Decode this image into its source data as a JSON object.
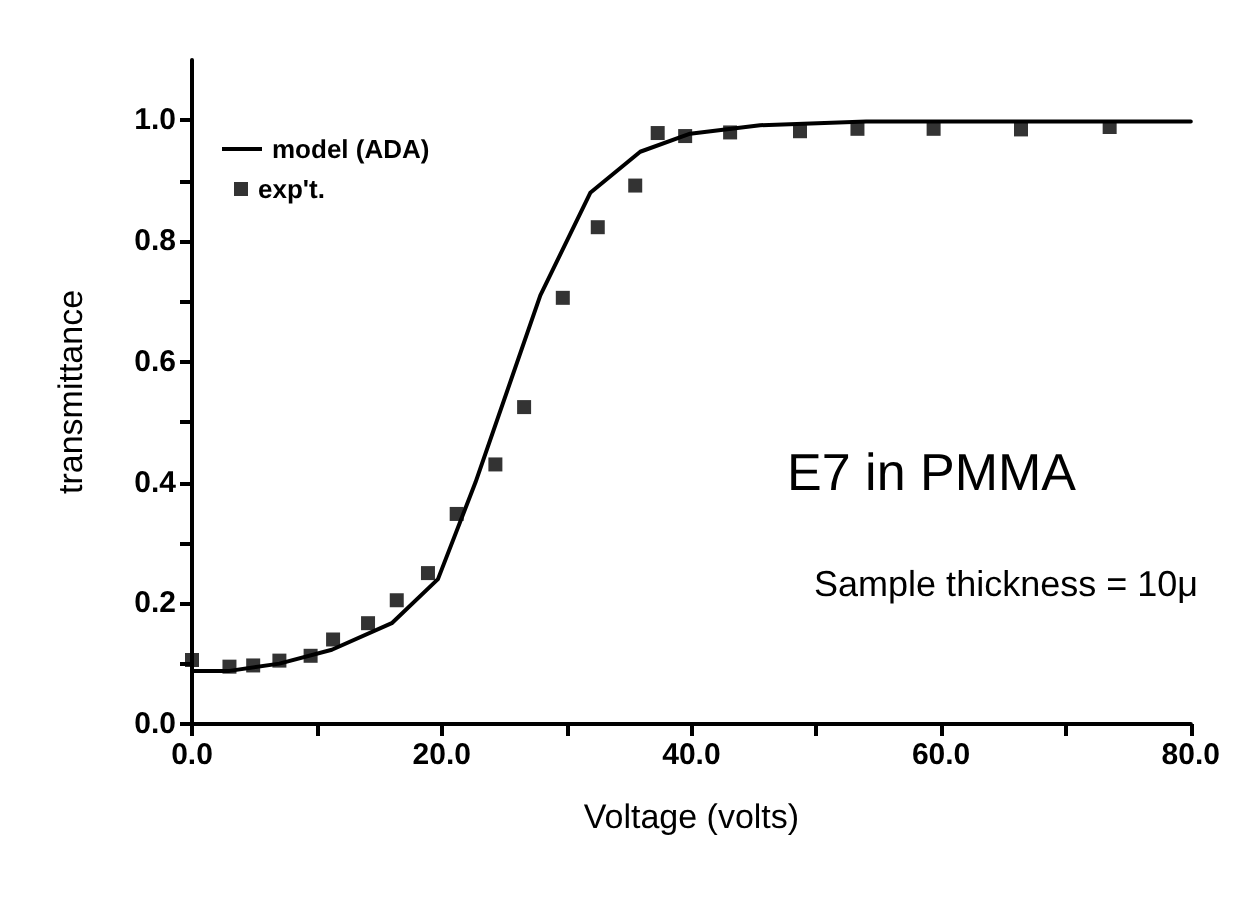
{
  "chart_data": {
    "type": "line",
    "xlabel": "Voltage (volts)",
    "ylabel": "transmittance",
    "annotations": [
      "E7 in PMMA",
      "Sample thickness = 10μ"
    ],
    "xlim": [
      0,
      80
    ],
    "ylim": [
      0,
      1.1
    ],
    "xticks": [
      {
        "value": 0,
        "label": "0.0"
      },
      {
        "value": 10,
        "label": null
      },
      {
        "value": 20,
        "label": "20.0"
      },
      {
        "value": 30,
        "label": null
      },
      {
        "value": 40,
        "label": "40.0"
      },
      {
        "value": 50,
        "label": null
      },
      {
        "value": 60,
        "label": "60.0"
      },
      {
        "value": 70,
        "label": null
      },
      {
        "value": 80,
        "label": "80.0"
      }
    ],
    "yticks": [
      {
        "value": 0,
        "label": "0.0"
      },
      {
        "value": 0.1,
        "label": null
      },
      {
        "value": 0.2,
        "label": "0.2"
      },
      {
        "value": 0.3,
        "label": null
      },
      {
        "value": 0.4,
        "label": "0.4"
      },
      {
        "value": 0.5,
        "label": null
      },
      {
        "value": 0.6,
        "label": "0.6"
      },
      {
        "value": 0.7,
        "label": null
      },
      {
        "value": 0.8,
        "label": "0.8"
      },
      {
        "value": 0.9,
        "label": null
      },
      {
        "value": 1.0,
        "label": "1.0"
      }
    ],
    "grid": false,
    "legend": "top left",
    "series": [
      {
        "name": "model (ADA)",
        "color": "#000000",
        "marker": "none",
        "line_style": "solid",
        "x": [
          0,
          3,
          7,
          11.2,
          16,
          19.7,
          22.7,
          27.9,
          31.9,
          35.9,
          39.9,
          45.5,
          54,
          80
        ],
        "values": [
          0.088,
          0.088,
          0.1,
          0.123,
          0.167,
          0.24,
          0.4,
          0.71,
          0.88,
          0.948,
          0.978,
          0.992,
          0.998,
          0.998
        ]
      },
      {
        "name": "exp't.",
        "type": "scatter",
        "color": "#000000",
        "marker": "square",
        "x": [
          0,
          3,
          4.9,
          7,
          9.5,
          11.3,
          14.1,
          16.4,
          18.9,
          21.2,
          24.3,
          26.6,
          29.7,
          32.5,
          35.5,
          37.3,
          39.5,
          43.1,
          48.7,
          53.3,
          59.4,
          66.4,
          73.5
        ],
        "values": [
          0.106,
          0.095,
          0.097,
          0.105,
          0.113,
          0.14,
          0.167,
          0.205,
          0.25,
          0.348,
          0.43,
          0.525,
          0.706,
          0.823,
          0.892,
          0.979,
          0.974,
          0.98,
          0.982,
          0.986,
          0.986,
          0.985,
          0.989
        ]
      }
    ]
  }
}
